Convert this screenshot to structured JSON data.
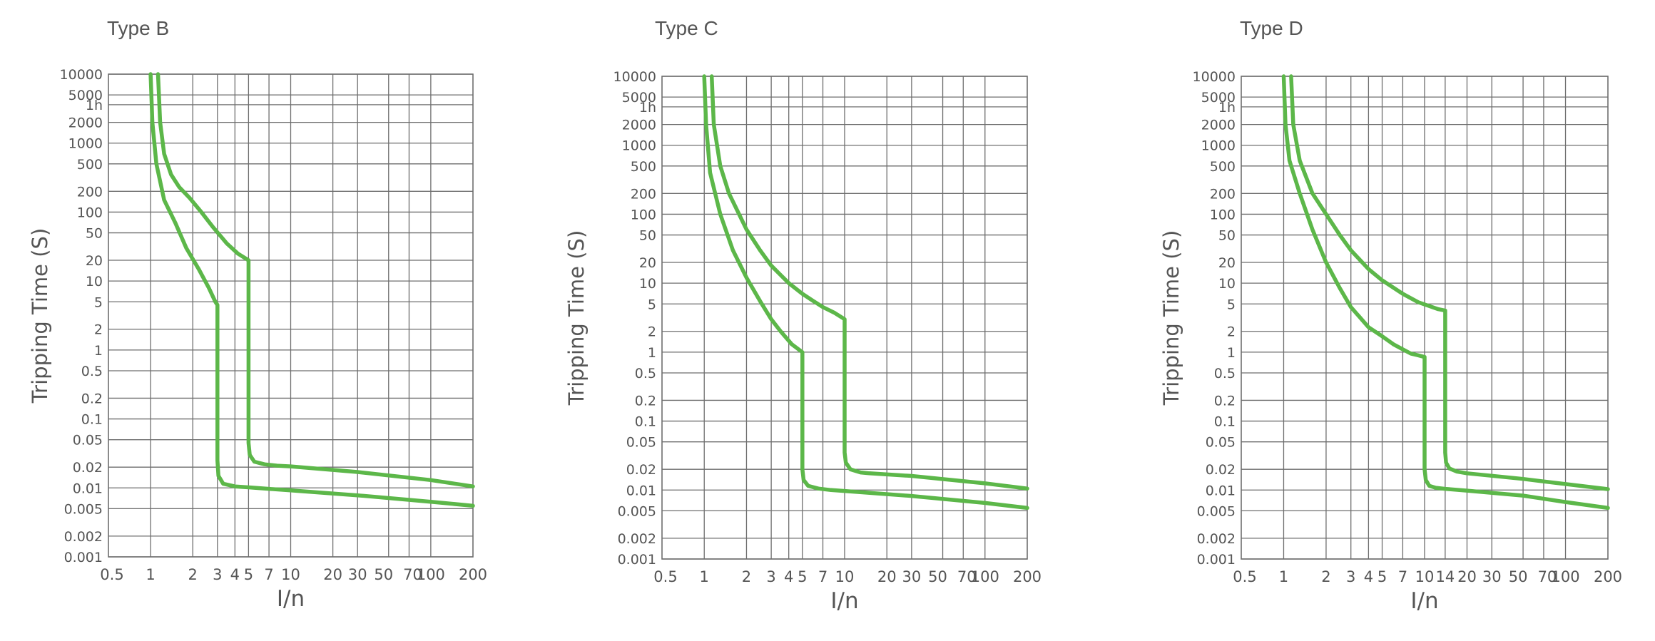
{
  "colors": {
    "curve": "#5cb749",
    "grid": "#6e6e6e",
    "text": "#555555",
    "background": "#ffffff"
  },
  "chart_data": [
    {
      "type": "line",
      "title": "Type B",
      "xlabel": "I/n",
      "ylabel": "Tripping Time (S)",
      "x_scale": "log",
      "y_scale": "log",
      "xlim": [
        0.5,
        200
      ],
      "ylim": [
        0.001,
        10000
      ],
      "x_tick_labels": [
        "0.5",
        "1",
        "2",
        "3",
        "4",
        "5",
        "7",
        "10",
        "20",
        "30",
        "50",
        "70",
        "100",
        "200"
      ],
      "y_tick_labels": [
        "10000",
        "5000",
        "1h",
        "2000",
        "1000",
        "500",
        "200",
        "100",
        "50",
        "20",
        "10",
        "5",
        "2",
        "1",
        "0.5",
        "0.2",
        "0.1",
        "0.05",
        "0.02",
        "0.01",
        "0.005",
        "0.002",
        "0.001"
      ],
      "series": [
        {
          "x": [
            1,
            1.03,
            1.1,
            1.25,
            1.5,
            1.8,
            2.2,
            2.6,
            2.9,
            3,
            3,
            3.05,
            3.3,
            4,
            5,
            7,
            10,
            30,
            100,
            200
          ],
          "y": [
            10000,
            2000,
            500,
            150,
            70,
            30,
            15,
            8,
            5,
            4.5,
            0.025,
            0.015,
            0.0115,
            0.0105,
            0.0102,
            0.0097,
            0.0092,
            0.0078,
            0.0063,
            0.0055
          ]
        },
        {
          "x": [
            1.13,
            1.17,
            1.25,
            1.4,
            1.6,
            1.9,
            2.3,
            2.8,
            3.5,
            4.2,
            5,
            5,
            5.1,
            5.5,
            6.5,
            8,
            10,
            30,
            100,
            200
          ],
          "y": [
            10000,
            2000,
            700,
            350,
            230,
            160,
            100,
            60,
            35,
            25,
            20,
            0.045,
            0.03,
            0.024,
            0.022,
            0.021,
            0.0205,
            0.017,
            0.013,
            0.0105
          ]
        }
      ]
    },
    {
      "type": "line",
      "title": "Type C",
      "xlabel": "I/n",
      "ylabel": "Tripping Time (S)",
      "x_scale": "log",
      "y_scale": "log",
      "xlim": [
        0.5,
        200
      ],
      "ylim": [
        0.001,
        10000
      ],
      "x_tick_labels": [
        "0.5",
        "1",
        "2",
        "3",
        "4",
        "5",
        "7",
        "10",
        "20",
        "30",
        "50",
        "70",
        "100",
        "200"
      ],
      "y_tick_labels": [
        "10000",
        "5000",
        "1h",
        "2000",
        "1000",
        "500",
        "200",
        "100",
        "50",
        "20",
        "10",
        "5",
        "2",
        "1",
        "0.5",
        "0.2",
        "0.1",
        "0.05",
        "0.02",
        "0.01",
        "0.005",
        "0.002",
        "0.001"
      ],
      "series": [
        {
          "x": [
            1,
            1.03,
            1.1,
            1.3,
            1.6,
            2,
            2.5,
            3,
            3.5,
            4.2,
            5,
            5,
            5.1,
            5.5,
            6.5,
            8,
            10,
            30,
            100,
            200
          ],
          "y": [
            10000,
            2000,
            400,
            100,
            30,
            12,
            5.5,
            3,
            2,
            1.3,
            1,
            0.02,
            0.014,
            0.0115,
            0.0105,
            0.01,
            0.0097,
            0.0082,
            0.0065,
            0.0055
          ]
        },
        {
          "x": [
            1.13,
            1.17,
            1.3,
            1.5,
            2,
            2.5,
            3,
            4,
            5,
            6,
            7,
            8.5,
            10,
            10,
            10.2,
            11,
            13,
            15,
            30,
            100,
            200
          ],
          "y": [
            10000,
            2000,
            500,
            200,
            60,
            30,
            18,
            10,
            7,
            5.5,
            4.5,
            3.7,
            3,
            0.035,
            0.025,
            0.02,
            0.018,
            0.0175,
            0.016,
            0.0125,
            0.0105
          ]
        }
      ]
    },
    {
      "type": "line",
      "title": "Type D",
      "xlabel": "I/n",
      "ylabel": "Tripping Time (S)",
      "x_scale": "log",
      "y_scale": "log",
      "xlim": [
        0.5,
        200
      ],
      "ylim": [
        0.001,
        10000
      ],
      "x_tick_labels": [
        "0.5",
        "1",
        "2",
        "3",
        "4",
        "5",
        "7",
        "10",
        "14",
        "20",
        "30",
        "50",
        "70",
        "100",
        "200"
      ],
      "y_tick_labels": [
        "10000",
        "5000",
        "1h",
        "2000",
        "1000",
        "500",
        "200",
        "100",
        "50",
        "20",
        "10",
        "5",
        "2",
        "1",
        "0.5",
        "0.2",
        "0.1",
        "0.05",
        "0.02",
        "0.01",
        "0.005",
        "0.002",
        "0.001"
      ],
      "series": [
        {
          "x": [
            1,
            1.03,
            1.1,
            1.3,
            1.6,
            2,
            2.5,
            3,
            4,
            5,
            6,
            7,
            8,
            9,
            10,
            10,
            10.2,
            10.8,
            12,
            14,
            20,
            50,
            100,
            200
          ],
          "y": [
            10000,
            2000,
            600,
            200,
            60,
            20,
            8.5,
            4.5,
            2.3,
            1.7,
            1.3,
            1.1,
            0.95,
            0.9,
            0.85,
            0.02,
            0.014,
            0.0115,
            0.0108,
            0.0104,
            0.0098,
            0.0083,
            0.0067,
            0.0055
          ]
        },
        {
          "x": [
            1.13,
            1.17,
            1.3,
            1.6,
            2,
            2.5,
            3,
            4,
            5,
            7,
            9,
            11,
            12.5,
            14,
            14,
            14.2,
            15,
            17,
            20,
            50,
            100,
            200
          ],
          "y": [
            10000,
            2000,
            600,
            200,
            100,
            50,
            30,
            16,
            11,
            7,
            5.3,
            4.6,
            4.2,
            4,
            0.035,
            0.025,
            0.0205,
            0.0185,
            0.0175,
            0.0145,
            0.0122,
            0.0103
          ]
        }
      ]
    }
  ]
}
